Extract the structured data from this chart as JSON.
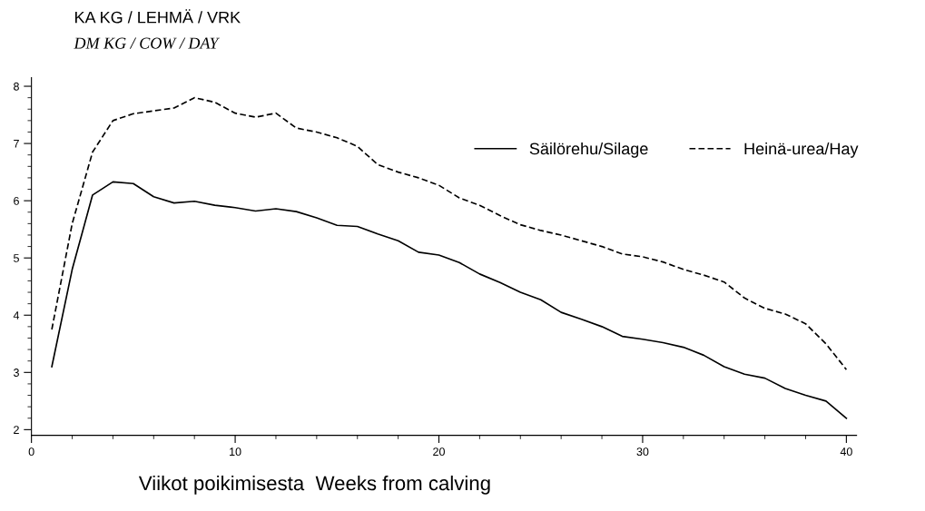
{
  "chart_data": {
    "type": "line",
    "title": "KA KG / LEHMÄ / VRK",
    "subtitle": "DM KG / COW / DAY",
    "xlabel": "Viikot poikimisesta  Weeks from calving",
    "x": [
      1,
      2,
      3,
      4,
      5,
      6,
      7,
      8,
      9,
      10,
      11,
      12,
      13,
      14,
      15,
      16,
      17,
      18,
      19,
      20,
      21,
      22,
      23,
      24,
      25,
      26,
      27,
      28,
      29,
      30,
      31,
      32,
      33,
      34,
      35,
      36,
      37,
      38,
      39,
      40
    ],
    "series": [
      {
        "name": "Säilörehu/Silage",
        "color": "#000000",
        "line_style": "solid",
        "values": [
          3.1,
          4.8,
          6.1,
          6.33,
          6.3,
          6.07,
          5.96,
          5.99,
          5.92,
          5.88,
          5.82,
          5.86,
          5.81,
          5.7,
          5.57,
          5.55,
          5.42,
          5.3,
          5.1,
          5.05,
          4.92,
          4.72,
          4.57,
          4.4,
          4.27,
          4.05,
          3.93,
          3.8,
          3.63,
          3.58,
          3.52,
          3.44,
          3.3,
          3.1,
          2.97,
          2.9,
          2.72,
          2.6,
          2.5,
          2.2
        ]
      },
      {
        "name": "Heinä-urea/Hay",
        "color": "#000000",
        "line_style": "dashed",
        "values": [
          3.75,
          5.6,
          6.85,
          7.4,
          7.52,
          7.57,
          7.62,
          7.8,
          7.72,
          7.53,
          7.46,
          7.53,
          7.27,
          7.2,
          7.1,
          6.95,
          6.63,
          6.5,
          6.4,
          6.27,
          6.05,
          5.92,
          5.74,
          5.58,
          5.48,
          5.4,
          5.3,
          5.2,
          5.07,
          5.02,
          4.93,
          4.8,
          4.7,
          4.58,
          4.3,
          4.12,
          4.02,
          3.85,
          3.5,
          3.05
        ]
      }
    ],
    "xlim": [
      0,
      40.5
    ],
    "ylim": [
      1.9,
      8.15
    ],
    "xticks": [
      0,
      10,
      20,
      30,
      40
    ],
    "yticks": [
      2,
      3,
      4,
      5,
      6,
      7,
      8
    ],
    "grid": false,
    "legend": "top right",
    "marker": "none"
  }
}
